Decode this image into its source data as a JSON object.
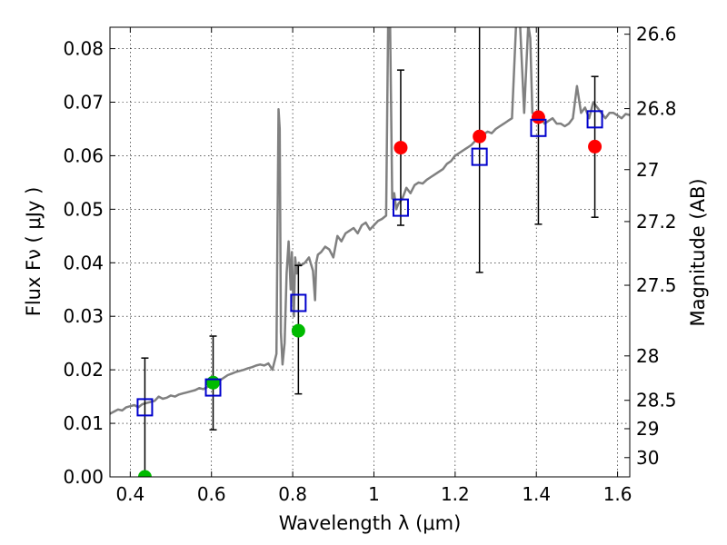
{
  "chart_data": {
    "type": "scatter",
    "xlabel": "Wavelength  λ (μm)",
    "ylabel_left": "Flux  Fν  ( μJy )",
    "ylabel_right": "Magnitude (AB)",
    "xlim": [
      0.35,
      1.63
    ],
    "ylim": [
      0.0,
      0.084
    ],
    "x_ticks": [
      0.4,
      0.6,
      0.8,
      1.0,
      1.2,
      1.4,
      1.6
    ],
    "x_tick_labels": [
      "0.4",
      "0.6",
      "0.8",
      "1",
      "1.2",
      "1.4",
      "1.6"
    ],
    "y_ticks": [
      0.0,
      0.01,
      0.02,
      0.03,
      0.04,
      0.05,
      0.06,
      0.07,
      0.08
    ],
    "y_tick_labels": [
      "0.00",
      "0.01",
      "0.02",
      "0.03",
      "0.04",
      "0.05",
      "0.06",
      "0.07",
      "0.08"
    ],
    "right_ticks": [
      {
        "label": "26.6",
        "flux": 0.0827
      },
      {
        "label": "26.8",
        "flux": 0.0688
      },
      {
        "label": "27",
        "flux": 0.0574
      },
      {
        "label": "27.2",
        "flux": 0.0477
      },
      {
        "label": "27.5",
        "flux": 0.0358
      },
      {
        "label": "28",
        "flux": 0.0226
      },
      {
        "label": "28.5",
        "flux": 0.0143
      },
      {
        "label": "29",
        "flux": 0.009
      },
      {
        "label": "30",
        "flux": 0.0036
      }
    ],
    "grid": true,
    "colors": {
      "model": "#808080",
      "observed_hi": "#ff0000",
      "observed_lo": "#00bb00",
      "model_box": "#0000cc",
      "errorbar": "#000000"
    },
    "model_spectrum": {
      "x": [
        0.35,
        0.36,
        0.37,
        0.38,
        0.39,
        0.4,
        0.41,
        0.42,
        0.43,
        0.44,
        0.45,
        0.46,
        0.47,
        0.48,
        0.49,
        0.5,
        0.51,
        0.52,
        0.53,
        0.54,
        0.55,
        0.56,
        0.57,
        0.58,
        0.59,
        0.6,
        0.61,
        0.62,
        0.63,
        0.64,
        0.65,
        0.66,
        0.67,
        0.68,
        0.69,
        0.7,
        0.71,
        0.72,
        0.73,
        0.74,
        0.75,
        0.76,
        0.765,
        0.768,
        0.771,
        0.775,
        0.78,
        0.785,
        0.79,
        0.795,
        0.798,
        0.8,
        0.803,
        0.806,
        0.81,
        0.815,
        0.82,
        0.83,
        0.84,
        0.85,
        0.855,
        0.858,
        0.862,
        0.87,
        0.88,
        0.89,
        0.9,
        0.91,
        0.92,
        0.93,
        0.94,
        0.95,
        0.96,
        0.97,
        0.98,
        0.99,
        1.0,
        1.01,
        1.02,
        1.03,
        1.035,
        1.04,
        1.045,
        1.05,
        1.055,
        1.06,
        1.07,
        1.08,
        1.09,
        1.1,
        1.11,
        1.12,
        1.13,
        1.14,
        1.15,
        1.16,
        1.17,
        1.18,
        1.19,
        1.2,
        1.21,
        1.22,
        1.23,
        1.24,
        1.25,
        1.26,
        1.27,
        1.28,
        1.29,
        1.3,
        1.31,
        1.32,
        1.33,
        1.34,
        1.35,
        1.36,
        1.37,
        1.38,
        1.385,
        1.39,
        1.4,
        1.41,
        1.42,
        1.43,
        1.44,
        1.45,
        1.46,
        1.47,
        1.48,
        1.49,
        1.5,
        1.51,
        1.52,
        1.53,
        1.54,
        1.55,
        1.56,
        1.57,
        1.58,
        1.59,
        1.6,
        1.61,
        1.62,
        1.63
      ],
      "y": [
        0.0118,
        0.0122,
        0.0126,
        0.0124,
        0.013,
        0.0132,
        0.0134,
        0.013,
        0.0136,
        0.0138,
        0.014,
        0.0142,
        0.015,
        0.0146,
        0.0148,
        0.0152,
        0.015,
        0.0154,
        0.0156,
        0.0158,
        0.016,
        0.0162,
        0.0166,
        0.0164,
        0.0168,
        0.0172,
        0.0175,
        0.018,
        0.0185,
        0.019,
        0.0193,
        0.0196,
        0.0198,
        0.02,
        0.0203,
        0.0205,
        0.0208,
        0.021,
        0.0208,
        0.0212,
        0.02,
        0.023,
        0.0687,
        0.065,
        0.027,
        0.021,
        0.025,
        0.038,
        0.044,
        0.035,
        0.042,
        0.036,
        0.03,
        0.041,
        0.038,
        0.04,
        0.0395,
        0.04,
        0.041,
        0.0385,
        0.033,
        0.04,
        0.0415,
        0.042,
        0.043,
        0.0425,
        0.041,
        0.045,
        0.044,
        0.0455,
        0.046,
        0.0465,
        0.0455,
        0.047,
        0.0475,
        0.0462,
        0.047,
        0.0478,
        0.0482,
        0.0488,
        0.0845,
        0.084,
        0.052,
        0.053,
        0.05,
        0.051,
        0.052,
        0.054,
        0.053,
        0.0545,
        0.055,
        0.0548,
        0.0555,
        0.056,
        0.0565,
        0.057,
        0.0575,
        0.0585,
        0.059,
        0.06,
        0.0605,
        0.061,
        0.0615,
        0.062,
        0.0628,
        0.0635,
        0.064,
        0.0645,
        0.0642,
        0.065,
        0.0655,
        0.066,
        0.0665,
        0.067,
        0.0845,
        0.0845,
        0.068,
        0.0845,
        0.082,
        0.068,
        0.0675,
        0.0672,
        0.066,
        0.0665,
        0.067,
        0.066,
        0.066,
        0.0655,
        0.066,
        0.067,
        0.073,
        0.068,
        0.069,
        0.067,
        0.07,
        0.069,
        0.068,
        0.067,
        0.068,
        0.068,
        0.0675,
        0.067,
        0.0678,
        0.0676
      ]
    },
    "photometry": [
      {
        "x": 0.436,
        "observed": 0.0,
        "observed_color": "lo",
        "model": 0.013,
        "err_lo": 0.0,
        "err_hi": 0.0222
      },
      {
        "x": 0.604,
        "observed": 0.0176,
        "observed_color": "lo",
        "model": 0.0167,
        "err_lo": 0.0088,
        "err_hi": 0.0263
      },
      {
        "x": 0.814,
        "observed": 0.0273,
        "observed_color": "lo",
        "model": 0.0325,
        "err_lo": 0.0155,
        "err_hi": 0.0395
      },
      {
        "x": 1.066,
        "observed": 0.0615,
        "observed_color": "hi",
        "model": 0.0503,
        "err_lo": 0.047,
        "err_hi": 0.076
      },
      {
        "x": 1.26,
        "observed": 0.0636,
        "observed_color": "hi",
        "model": 0.0598,
        "err_lo": 0.0382,
        "err_hi": 0.0845
      },
      {
        "x": 1.405,
        "observed": 0.0672,
        "observed_color": "hi",
        "model": 0.0652,
        "err_lo": 0.0472,
        "err_hi": 0.0845
      },
      {
        "x": 1.544,
        "observed": 0.0617,
        "observed_color": "hi",
        "model": 0.0668,
        "err_lo": 0.0485,
        "err_hi": 0.0748
      }
    ]
  }
}
